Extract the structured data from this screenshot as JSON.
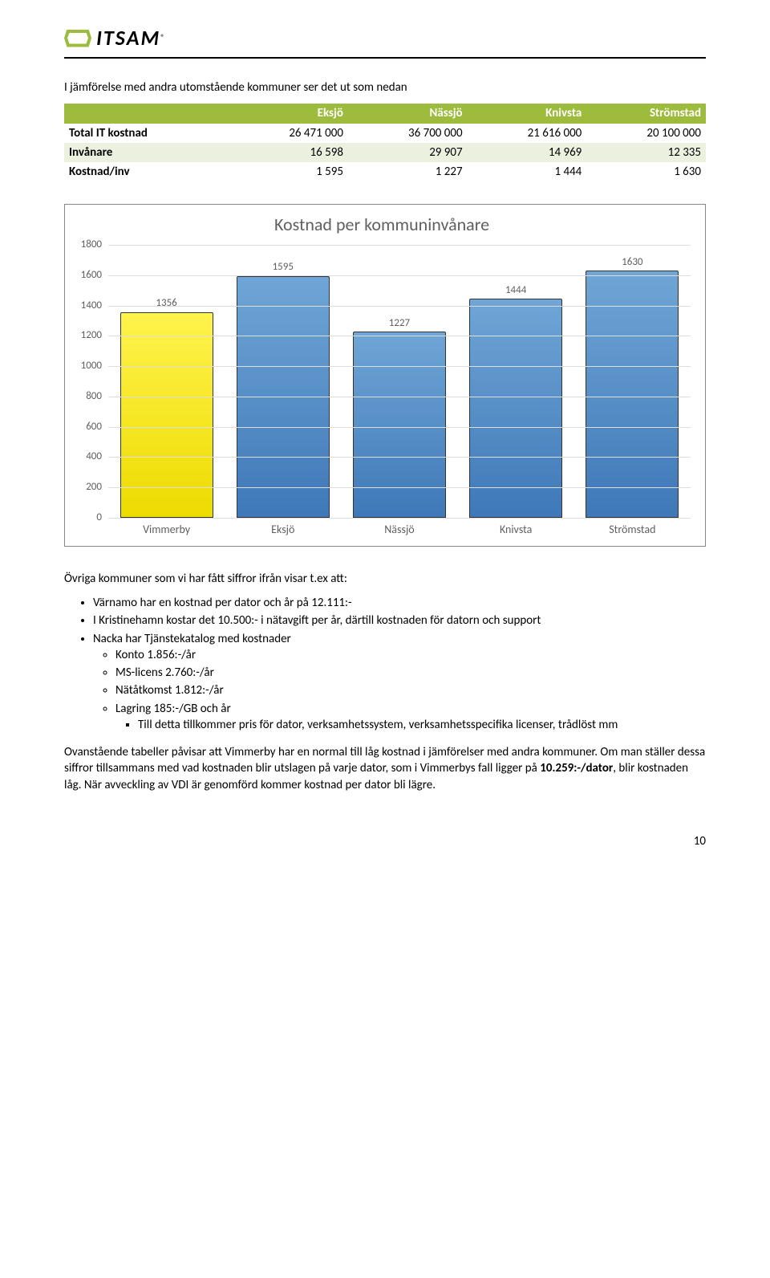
{
  "logo": {
    "text": "ITSAM",
    "reg": "®"
  },
  "intro": "I jämförelse med andra utomstående kommuner ser det ut som nedan",
  "table": {
    "headers": [
      "",
      "Eksjö",
      "Nässjö",
      "Knivsta",
      "Strömstad"
    ],
    "rows": [
      {
        "label": "Total IT kostnad",
        "cells": [
          "26 471 000",
          "36 700 000",
          "21 616 000",
          "20 100 000"
        ],
        "alt": false
      },
      {
        "label": "Invånare",
        "cells": [
          "16 598",
          "29 907",
          "14 969",
          "12 335"
        ],
        "alt": true
      },
      {
        "label": "Kostnad/inv",
        "cells": [
          "1 595",
          "1 227",
          "1 444",
          "1 630"
        ],
        "alt": false
      }
    ]
  },
  "chart": {
    "title": "Kostnad per kommuninvånare",
    "ylim_max": 1800,
    "yticks": [
      0,
      200,
      400,
      600,
      800,
      1000,
      1200,
      1400,
      1600,
      1800
    ],
    "bars": [
      {
        "label": "Vimmerby",
        "value": 1356,
        "color": "yellow"
      },
      {
        "label": "Eksjö",
        "value": 1595,
        "color": "blue"
      },
      {
        "label": "Nässjö",
        "value": 1227,
        "color": "blue"
      },
      {
        "label": "Knivsta",
        "value": 1444,
        "color": "blue"
      },
      {
        "label": "Strömstad",
        "value": 1630,
        "color": "blue"
      }
    ]
  },
  "para_after_chart": "Övriga kommuner som vi har fått siffror ifrån visar t.ex att:",
  "bullets": [
    "Värnamo har en kostnad per dator och år på 12.111:-",
    "I Kristinehamn kostar det 10.500:- i nätavgift per år, därtill kostnaden för datorn och support",
    "Nacka har Tjänstekatalog med kostnader"
  ],
  "sub_bullets": [
    "Konto 1.856:-/år",
    "MS-licens 2.760:-/år",
    "Nätåtkomst 1.812:-/år",
    "Lagring 185:-/GB och år"
  ],
  "sub_sub_bullet": "Till detta tillkommer pris för dator, verksamhetssystem, verksamhetsspecifika licenser, trådlöst mm",
  "closing": {
    "p1a": "Ovanstående tabeller påvisar att Vimmerby har en normal till låg kostnad i jämförelser med andra kommuner. Om man ställer dessa siffror tillsammans med vad kostnaden blir utslagen på varje dator, som i Vimmerbys fall ligger på ",
    "p1bold": "10.259:-/dator",
    "p1b": ", blir kostnaden låg. När avveckling av VDI är genomförd kommer kostnad per dator bli lägre."
  },
  "page_number": "10"
}
